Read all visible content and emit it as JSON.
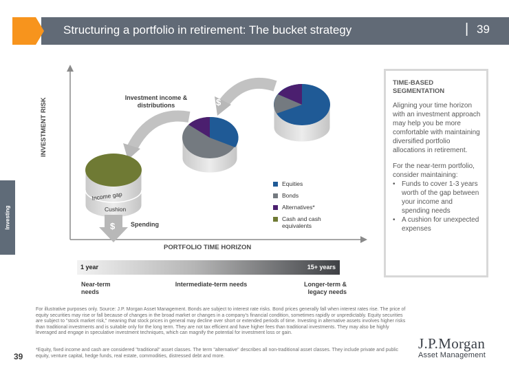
{
  "header": {
    "title": "Structuring a portfolio in retirement: The bucket strategy",
    "separator": "|",
    "page_number": "39"
  },
  "side_tab": "Investing",
  "chart": {
    "y_axis_label": "INVESTMENT RISK",
    "x_axis_label": "PORTFOLIO TIME HORIZON",
    "income_label": "Investment income & distributions",
    "spending_label": "Spending",
    "income_gap_label": "Income gap",
    "cushion_label": "Cushion",
    "dollar_sign": "$"
  },
  "legend": [
    {
      "label": "Equities",
      "color": "#1f5a96"
    },
    {
      "label": "Bonds",
      "color": "#747a80"
    },
    {
      "label": "Alternatives*",
      "color": "#4b1f6f"
    },
    {
      "label": "Cash and cash equivalents",
      "color": "#6f7a34"
    }
  ],
  "timebar": {
    "left": "1 year",
    "right": "15+ years"
  },
  "needs": {
    "near": "Near-term needs",
    "intermediate": "Intermediate-term needs",
    "longer": "Longer-term & legacy needs"
  },
  "panel": {
    "heading": "TIME-BASED SEGMENTATION",
    "para1": "Aligning your time horizon with an investment approach may help you be more comfortable with maintaining diversified portfolio allocations in retirement.",
    "para2": "For the near-term portfolio, consider maintaining:",
    "bullets": [
      "Funds to cover 1-3 years worth of the gap between your income and spending needs",
      "A cushion for unexpected expenses"
    ],
    "bullet_symbol": "•"
  },
  "footnote1": "For illustrative purposes only. Source: J.P. Morgan Asset Management. Bonds are subject to interest rate risks. Bond prices generally fall when interest rates rise. The price of equity securities may rise or fall because of changes in the broad market or changes in a company's financial condition, sometimes rapidly or unpredictably. Equity securities are subject to \"stock market risk,\" meaning that stock prices in general may decline over short or extended periods of time. Investing in alternative assets involves higher risks than traditional investments and is suitable only for the long term. They are not tax efficient and have higher fees than traditional investments. They may also be highly leveraged and engage in speculative investment techniques, which can magnify the potential for investment loss or gain.",
  "footnote2": "*Equity, fixed income and cash are considered \"traditional\" asset classes. The term \"alternative\" describes all non-traditional asset classes. They include private and public equity, venture capital, hedge funds, real estate, commodities, distressed debt and more.",
  "page_number_bottom": "39",
  "logo": {
    "main": "J.P.Morgan",
    "sub": "Asset Management"
  },
  "colors": {
    "header_band": "#616a76",
    "accent_orange": "#f7941d",
    "equities": "#1f5a96",
    "bonds": "#747a80",
    "alternatives": "#4b1f6f",
    "cash": "#6f7a34"
  }
}
